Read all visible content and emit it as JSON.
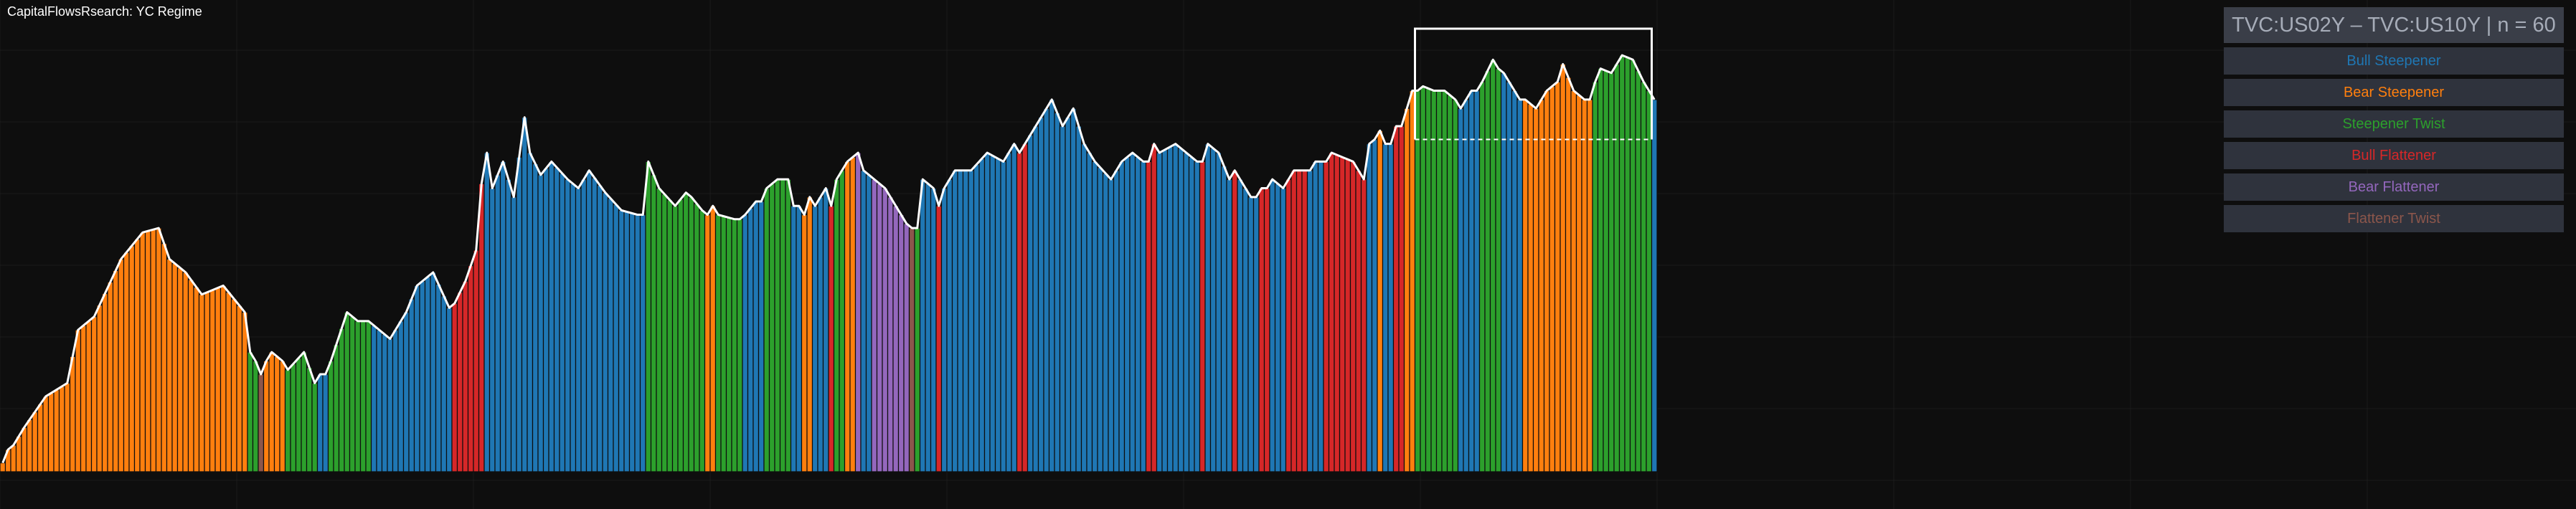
{
  "header": {
    "title": "CapitalFlowsRsearch: YC Regime"
  },
  "legend": {
    "header": "TVC:US02Y – TVC:US10Y | n = 60",
    "items": [
      {
        "label": "Bull Steepener",
        "color": "#1f77b4"
      },
      {
        "label": "Bear Steepener",
        "color": "#ff7f0e"
      },
      {
        "label": "Steepener Twist",
        "color": "#2ca02c"
      },
      {
        "label": "Bull Flattener",
        "color": "#d62728"
      },
      {
        "label": "Bear Flattener",
        "color": "#9467bd"
      },
      {
        "label": "Flattener Twist",
        "color": "#8c564b"
      }
    ]
  },
  "chart_data": {
    "type": "bar",
    "title": "CapitalFlowsRsearch: YC Regime",
    "xlabel": "",
    "ylabel": "",
    "ylim": [
      0,
      1
    ],
    "grid": true,
    "legend_position": "top-right",
    "highlight_box": {
      "x_start_index": 263,
      "x_end_index": 306,
      "y_bottom": 0.75,
      "y_top": 1.0
    },
    "regime_segments": [
      {
        "regime": "Bear Steepener",
        "knots": [
          [
            0.0,
            0.02
          ],
          [
            1.0,
            0.05
          ],
          [
            2.0,
            0.06
          ],
          [
            4.0,
            0.1
          ],
          [
            8.0,
            0.17
          ],
          [
            12.0,
            0.2
          ],
          [
            14.0,
            0.32
          ],
          [
            17.0,
            0.35
          ],
          [
            22.0,
            0.48
          ],
          [
            26.0,
            0.54
          ],
          [
            29.0,
            0.55
          ],
          [
            31.0,
            0.48
          ],
          [
            34.0,
            0.45
          ],
          [
            37.0,
            0.4
          ],
          [
            41.0,
            0.42
          ],
          [
            45.0,
            0.36
          ]
        ]
      },
      {
        "regime": "Steepener Twist",
        "knots": [
          [
            46.0,
            0.27
          ],
          [
            47.0,
            0.25
          ]
        ]
      },
      {
        "regime": "Flattener Twist",
        "knots": [
          [
            48.0,
            0.22
          ]
        ]
      },
      {
        "regime": "Bear Steepener",
        "knots": [
          [
            49.0,
            0.25
          ],
          [
            50.0,
            0.27
          ],
          [
            52.0,
            0.25
          ]
        ]
      },
      {
        "regime": "Steepener Twist",
        "knots": [
          [
            53.0,
            0.23
          ],
          [
            56.0,
            0.27
          ],
          [
            58.0,
            0.2
          ]
        ]
      },
      {
        "regime": "Bull Steepener",
        "knots": [
          [
            59.0,
            0.22
          ],
          [
            60.0,
            0.22
          ]
        ]
      },
      {
        "regime": "Steepener Twist",
        "knots": [
          [
            61.0,
            0.25
          ],
          [
            64.0,
            0.36
          ],
          [
            66.0,
            0.34
          ],
          [
            68.0,
            0.34
          ]
        ]
      },
      {
        "regime": "Bull Steepener",
        "knots": [
          [
            69.0,
            0.33
          ],
          [
            72.0,
            0.3
          ],
          [
            75.0,
            0.36
          ],
          [
            77.0,
            0.42
          ],
          [
            80.0,
            0.45
          ],
          [
            83.0,
            0.37
          ]
        ]
      },
      {
        "regime": "Bull Flattener",
        "knots": [
          [
            84.0,
            0.38
          ],
          [
            86.0,
            0.43
          ],
          [
            88.0,
            0.5
          ],
          [
            89.0,
            0.65
          ]
        ]
      },
      {
        "regime": "Bull Steepener",
        "knots": [
          [
            90.0,
            0.72
          ],
          [
            91.0,
            0.64
          ],
          [
            93.0,
            0.7
          ],
          [
            95.0,
            0.62
          ],
          [
            97.0,
            0.8
          ],
          [
            98.0,
            0.72
          ],
          [
            100.0,
            0.67
          ],
          [
            102.0,
            0.7
          ],
          [
            105.0,
            0.66
          ],
          [
            107.0,
            0.64
          ],
          [
            109.0,
            0.68
          ],
          [
            112.0,
            0.63
          ],
          [
            115.0,
            0.59
          ],
          [
            118.0,
            0.58
          ],
          [
            119.0,
            0.58
          ]
        ]
      },
      {
        "regime": "Steepener Twist",
        "knots": [
          [
            120.0,
            0.7
          ],
          [
            122.0,
            0.64
          ],
          [
            125.0,
            0.6
          ],
          [
            127.0,
            0.63
          ],
          [
            128.0,
            0.62
          ],
          [
            130.0,
            0.59
          ]
        ]
      },
      {
        "regime": "Bear Steepener",
        "knots": [
          [
            131.0,
            0.58
          ],
          [
            132.0,
            0.6
          ]
        ]
      },
      {
        "regime": "Steepener Twist",
        "knots": [
          [
            133.0,
            0.58
          ],
          [
            136.0,
            0.57
          ],
          [
            137.0,
            0.57
          ]
        ]
      },
      {
        "regime": "Bull Steepener",
        "knots": [
          [
            138.0,
            0.58
          ],
          [
            140.0,
            0.61
          ],
          [
            141.0,
            0.61
          ]
        ]
      },
      {
        "regime": "Steepener Twist",
        "knots": [
          [
            142.0,
            0.64
          ],
          [
            144.0,
            0.66
          ],
          [
            146.0,
            0.66
          ]
        ]
      },
      {
        "regime": "Bull Steepener",
        "knots": [
          [
            147.0,
            0.6
          ],
          [
            148.0,
            0.6
          ]
        ]
      },
      {
        "regime": "Bear Steepener",
        "knots": [
          [
            149.0,
            0.58
          ],
          [
            150.0,
            0.62
          ]
        ]
      },
      {
        "regime": "Bull Steepener",
        "knots": [
          [
            151.0,
            0.6
          ],
          [
            153.0,
            0.64
          ]
        ]
      },
      {
        "regime": "Bull Flattener",
        "knots": [
          [
            154.0,
            0.6
          ]
        ]
      },
      {
        "regime": "Steepener Twist",
        "knots": [
          [
            155.0,
            0.66
          ],
          [
            156.0,
            0.68
          ]
        ]
      },
      {
        "regime": "Bear Steepener",
        "knots": [
          [
            157.0,
            0.7
          ],
          [
            158.0,
            0.71
          ]
        ]
      },
      {
        "regime": "Bear Flattener",
        "knots": [
          [
            159.0,
            0.72
          ]
        ]
      },
      {
        "regime": "Bull Steepener",
        "knots": [
          [
            160.0,
            0.68
          ],
          [
            161.0,
            0.67
          ]
        ]
      },
      {
        "regime": "Bear Flattener",
        "knots": [
          [
            162.0,
            0.66
          ],
          [
            164.0,
            0.64
          ],
          [
            166.0,
            0.6
          ],
          [
            168.0,
            0.56
          ]
        ]
      },
      {
        "regime": "Flattener Twist",
        "knots": [
          [
            169.0,
            0.55
          ]
        ]
      },
      {
        "regime": "Steepener Twist",
        "knots": [
          [
            170.0,
            0.55
          ]
        ]
      },
      {
        "regime": "Bull Steepener",
        "knots": [
          [
            171.0,
            0.66
          ],
          [
            173.0,
            0.64
          ]
        ]
      },
      {
        "regime": "Bull Flattener",
        "knots": [
          [
            174.0,
            0.6
          ]
        ]
      },
      {
        "regime": "Bull Steepener",
        "knots": [
          [
            175.0,
            0.64
          ],
          [
            177.0,
            0.68
          ],
          [
            180.0,
            0.68
          ],
          [
            183.0,
            0.72
          ],
          [
            186.0,
            0.7
          ],
          [
            188.0,
            0.74
          ]
        ]
      },
      {
        "regime": "Bull Flattener",
        "knots": [
          [
            189.0,
            0.72
          ],
          [
            190.0,
            0.74
          ]
        ]
      },
      {
        "regime": "Bull Steepener",
        "knots": [
          [
            191.0,
            0.76
          ],
          [
            193.0,
            0.8
          ],
          [
            195.0,
            0.84
          ],
          [
            197.0,
            0.78
          ],
          [
            199.0,
            0.82
          ],
          [
            201.0,
            0.74
          ],
          [
            203.0,
            0.7
          ],
          [
            206.0,
            0.66
          ],
          [
            208.0,
            0.7
          ],
          [
            210.0,
            0.72
          ],
          [
            212.0,
            0.7
          ]
        ]
      },
      {
        "regime": "Bull Flattener",
        "knots": [
          [
            213.0,
            0.7
          ],
          [
            214.0,
            0.74
          ]
        ]
      },
      {
        "regime": "Bull Steepener",
        "knots": [
          [
            215.0,
            0.72
          ],
          [
            218.0,
            0.74
          ],
          [
            220.0,
            0.72
          ],
          [
            222.0,
            0.7
          ]
        ]
      },
      {
        "regime": "Bull Flattener",
        "knots": [
          [
            223.0,
            0.7
          ]
        ]
      },
      {
        "regime": "Bull Steepener",
        "knots": [
          [
            224.0,
            0.74
          ],
          [
            226.0,
            0.72
          ],
          [
            228.0,
            0.66
          ]
        ]
      },
      {
        "regime": "Bull Flattener",
        "knots": [
          [
            229.0,
            0.68
          ]
        ]
      },
      {
        "regime": "Bull Steepener",
        "knots": [
          [
            230.0,
            0.66
          ],
          [
            232.0,
            0.62
          ],
          [
            233.0,
            0.62
          ]
        ]
      },
      {
        "regime": "Bull Flattener",
        "knots": [
          [
            234.0,
            0.64
          ],
          [
            235.0,
            0.64
          ]
        ]
      },
      {
        "regime": "Bull Steepener",
        "knots": [
          [
            236.0,
            0.66
          ],
          [
            238.0,
            0.64
          ]
        ]
      },
      {
        "regime": "Bull Flattener",
        "knots": [
          [
            239.0,
            0.66
          ],
          [
            240.0,
            0.68
          ],
          [
            241.0,
            0.68
          ],
          [
            242.0,
            0.68
          ]
        ]
      },
      {
        "regime": "Bull Steepener",
        "knots": [
          [
            243.0,
            0.68
          ],
          [
            244.0,
            0.7
          ],
          [
            245.0,
            0.7
          ]
        ]
      },
      {
        "regime": "Bull Flattener",
        "knots": [
          [
            246.0,
            0.7
          ],
          [
            247.0,
            0.72
          ],
          [
            249.0,
            0.71
          ],
          [
            251.0,
            0.7
          ],
          [
            253.0,
            0.66
          ]
        ]
      },
      {
        "regime": "Bull Steepener",
        "knots": [
          [
            254.0,
            0.74
          ],
          [
            255.0,
            0.75
          ]
        ]
      },
      {
        "regime": "Bear Steepener",
        "knots": [
          [
            256.0,
            0.77
          ]
        ]
      },
      {
        "regime": "Bull Steepener",
        "knots": [
          [
            257.0,
            0.74
          ],
          [
            258.0,
            0.74
          ]
        ]
      },
      {
        "regime": "Bull Flattener",
        "knots": [
          [
            259.0,
            0.78
          ],
          [
            260.0,
            0.78
          ]
        ]
      },
      {
        "regime": "Bear Steepener",
        "knots": [
          [
            261.0,
            0.82
          ],
          [
            262.0,
            0.86
          ]
        ]
      },
      {
        "regime": "Steepener Twist",
        "knots": [
          [
            263.0,
            0.86
          ],
          [
            264.0,
            0.87
          ],
          [
            266.0,
            0.86
          ],
          [
            268.0,
            0.86
          ],
          [
            270.0,
            0.84
          ]
        ]
      },
      {
        "regime": "Bull Steepener",
        "knots": [
          [
            271.0,
            0.82
          ],
          [
            273.0,
            0.86
          ],
          [
            274.0,
            0.86
          ]
        ]
      },
      {
        "regime": "Steepener Twist",
        "knots": [
          [
            275.0,
            0.88
          ],
          [
            277.0,
            0.93
          ],
          [
            278.0,
            0.91
          ]
        ]
      },
      {
        "regime": "Bull Steepener",
        "knots": [
          [
            279.0,
            0.9
          ],
          [
            281.0,
            0.86
          ],
          [
            282.0,
            0.84
          ]
        ]
      },
      {
        "regime": "Bear Steepener",
        "knots": [
          [
            283.0,
            0.84
          ],
          [
            285.0,
            0.82
          ],
          [
            287.0,
            0.86
          ],
          [
            289.0,
            0.88
          ],
          [
            290.0,
            0.92
          ],
          [
            292.0,
            0.86
          ],
          [
            294.0,
            0.84
          ],
          [
            295.0,
            0.84
          ]
        ]
      },
      {
        "regime": "Steepener Twist",
        "knots": [
          [
            296.0,
            0.88
          ],
          [
            297.0,
            0.91
          ],
          [
            299.0,
            0.9
          ],
          [
            301.0,
            0.94
          ],
          [
            303.0,
            0.93
          ],
          [
            305.0,
            0.88
          ],
          [
            306.0,
            0.86
          ]
        ]
      },
      {
        "regime": "Bull Steepener",
        "knots": [
          [
            307.0,
            0.84
          ]
        ]
      }
    ]
  }
}
